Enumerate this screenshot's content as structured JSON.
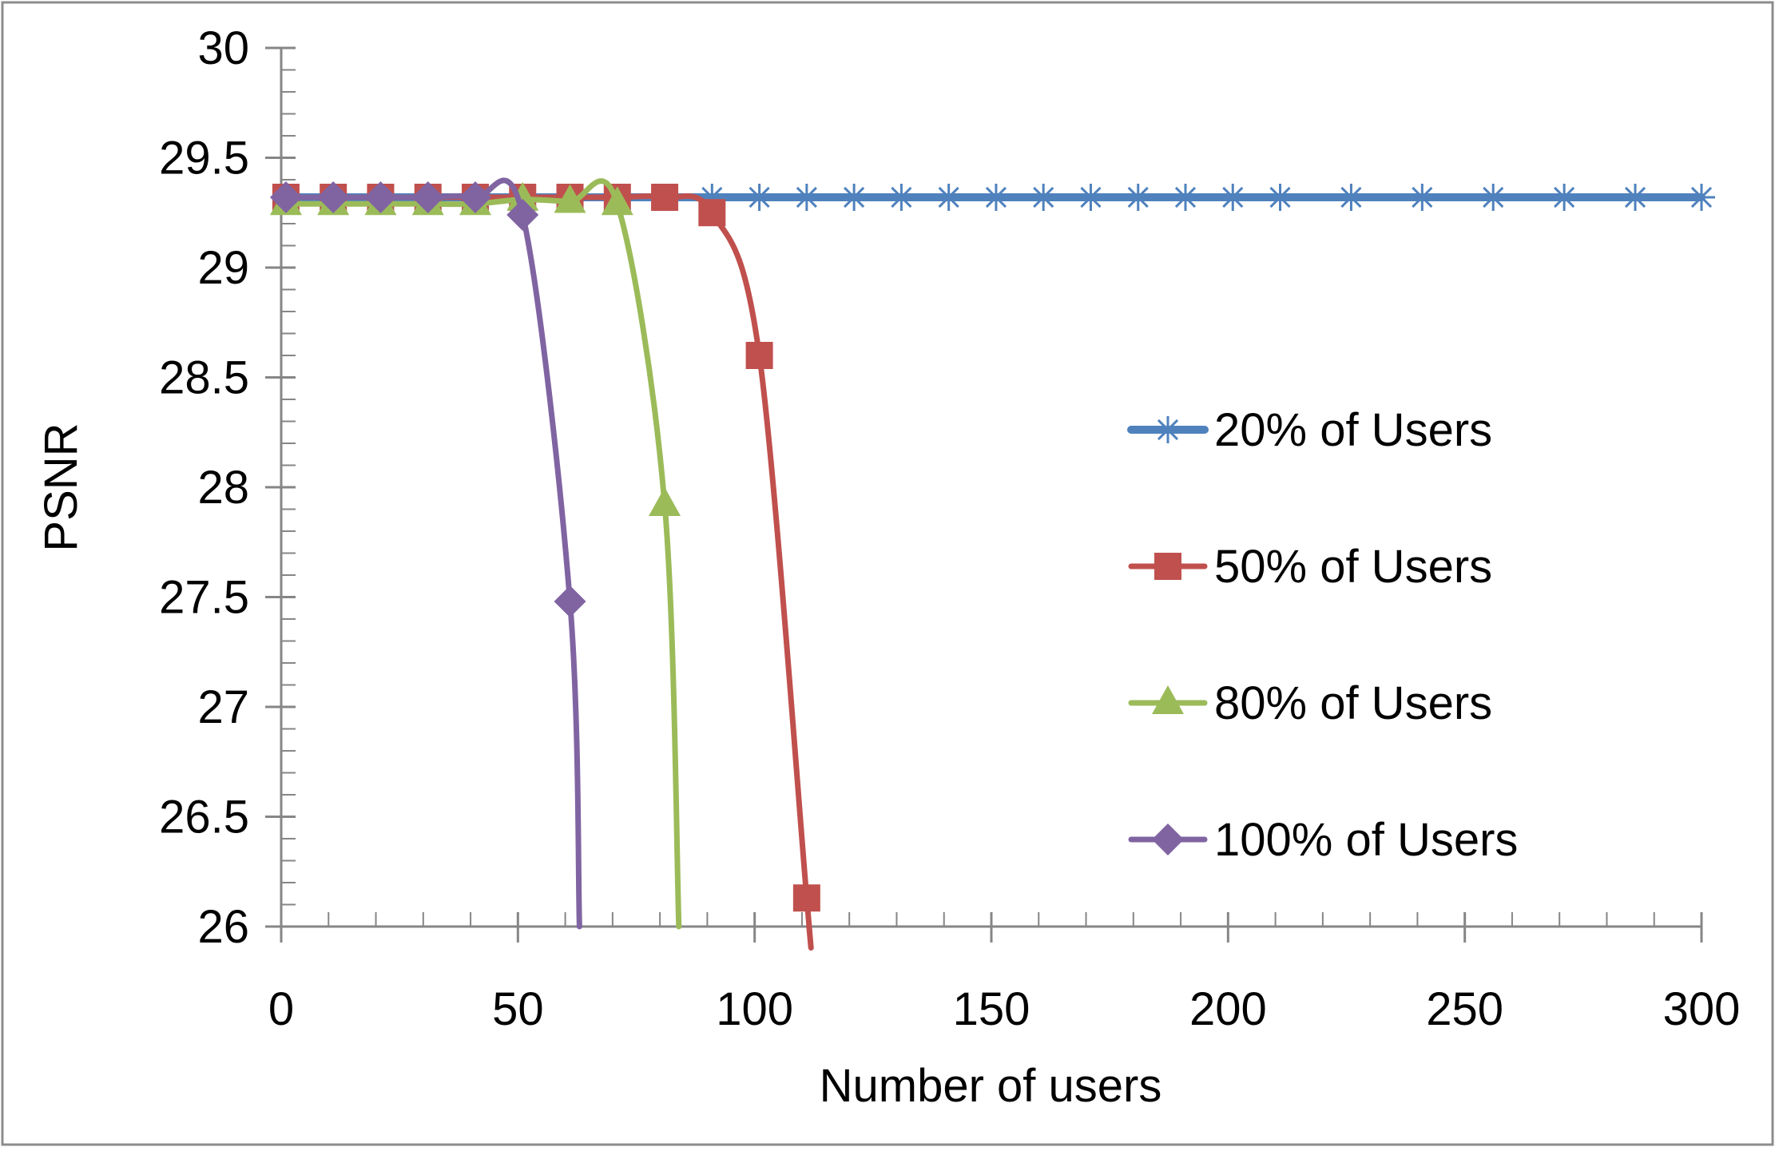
{
  "chart_data": {
    "type": "line",
    "title": "",
    "xlabel": "Number of users",
    "ylabel": "PSNR",
    "xlim": [
      0,
      300
    ],
    "ylim": [
      26,
      30
    ],
    "x_ticks": [
      0,
      50,
      100,
      150,
      200,
      250,
      300
    ],
    "x_tick_labels": [
      "0",
      "50",
      "100",
      "150",
      "200",
      "250",
      "300"
    ],
    "y_ticks": [
      26,
      26.5,
      27,
      27.5,
      28,
      28.5,
      29,
      29.5,
      30
    ],
    "y_tick_labels": [
      "26",
      "26.5",
      "27",
      "27.5",
      "28",
      "28.5",
      "29",
      "29.5",
      "30"
    ],
    "grid": false,
    "legend_position": "right",
    "series": [
      {
        "name": "20% of Users",
        "color": "#4f81bd",
        "marker": "asterisk-icon",
        "points": [
          [
            1,
            29.32
          ],
          [
            11,
            29.32
          ],
          [
            21,
            29.32
          ],
          [
            31,
            29.32
          ],
          [
            41,
            29.32
          ],
          [
            51,
            29.32
          ],
          [
            61,
            29.32
          ],
          [
            71,
            29.32
          ],
          [
            81,
            29.32
          ],
          [
            91,
            29.32
          ],
          [
            101,
            29.32
          ],
          [
            111,
            29.32
          ],
          [
            121,
            29.32
          ],
          [
            131,
            29.32
          ],
          [
            141,
            29.32
          ],
          [
            151,
            29.32
          ],
          [
            161,
            29.32
          ],
          [
            171,
            29.32
          ],
          [
            181,
            29.32
          ],
          [
            191,
            29.32
          ],
          [
            201,
            29.32
          ],
          [
            211,
            29.32
          ],
          [
            226,
            29.32
          ],
          [
            241,
            29.32
          ],
          [
            256,
            29.32
          ],
          [
            271,
            29.32
          ],
          [
            286,
            29.32
          ],
          [
            300,
            29.32
          ]
        ]
      },
      {
        "name": "50% of Users",
        "color": "#c0504d",
        "marker": "square-icon",
        "points": [
          [
            1,
            29.32
          ],
          [
            11,
            29.32
          ],
          [
            21,
            29.32
          ],
          [
            31,
            29.32
          ],
          [
            41,
            29.32
          ],
          [
            51,
            29.32
          ],
          [
            61,
            29.32
          ],
          [
            71,
            29.32
          ],
          [
            81,
            29.32
          ],
          [
            91,
            29.25
          ],
          [
            101,
            28.6
          ],
          [
            111,
            26.13
          ]
        ],
        "line_end": [
          111.5,
          26
        ]
      },
      {
        "name": "80% of Users",
        "color": "#9bbb59",
        "marker": "triangle-icon",
        "points": [
          [
            1,
            29.29
          ],
          [
            11,
            29.29
          ],
          [
            21,
            29.29
          ],
          [
            31,
            29.29
          ],
          [
            41,
            29.29
          ],
          [
            51,
            29.31
          ],
          [
            61,
            29.3
          ],
          [
            71,
            29.29
          ],
          [
            81,
            27.92
          ]
        ],
        "line_end": [
          84,
          26
        ]
      },
      {
        "name": "100% of Users",
        "color": "#8064a2",
        "marker": "diamond-icon",
        "points": [
          [
            1,
            29.32
          ],
          [
            11,
            29.32
          ],
          [
            21,
            29.32
          ],
          [
            31,
            29.32
          ],
          [
            41,
            29.32
          ],
          [
            51,
            29.24
          ],
          [
            61,
            27.48
          ]
        ],
        "line_end": [
          63,
          26
        ]
      }
    ]
  }
}
